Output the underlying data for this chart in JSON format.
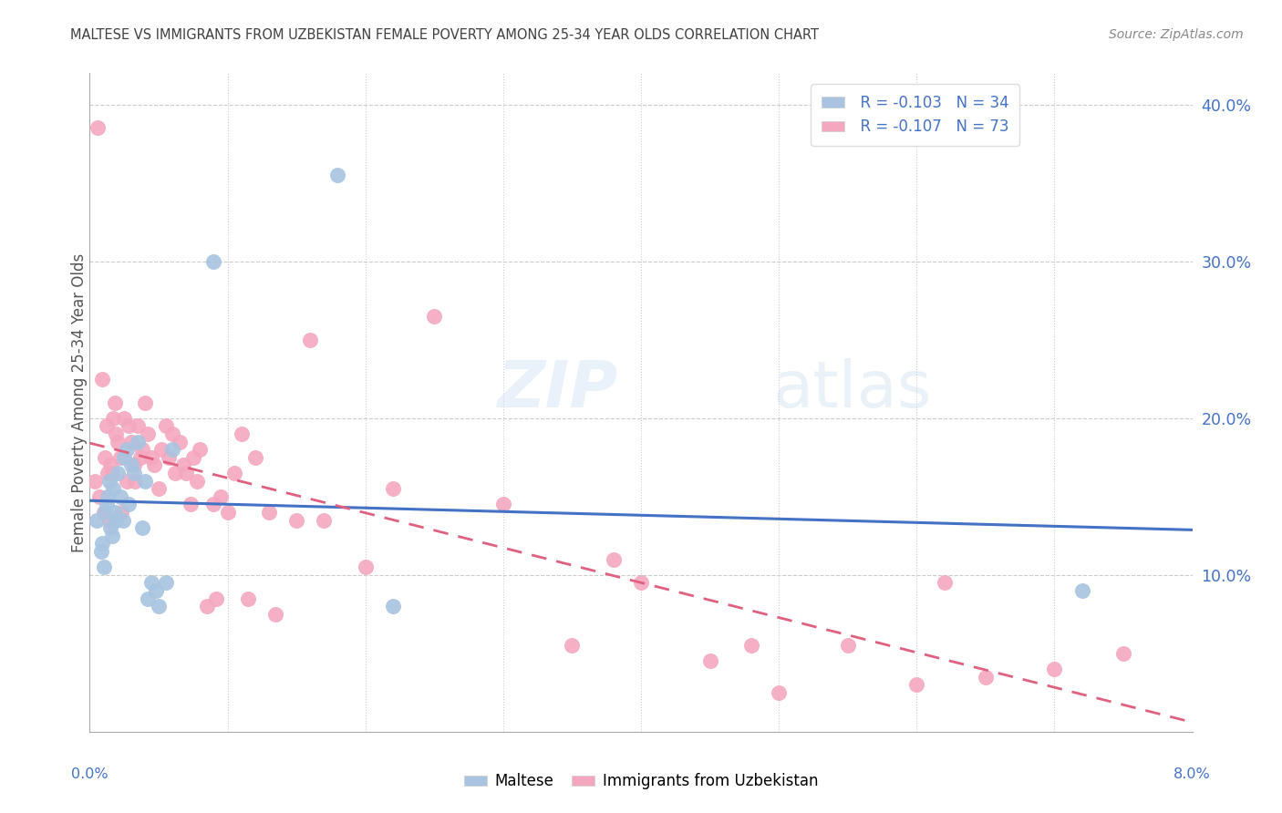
{
  "title": "MALTESE VS IMMIGRANTS FROM UZBEKISTAN FEMALE POVERTY AMONG 25-34 YEAR OLDS CORRELATION CHART",
  "source": "Source: ZipAtlas.com",
  "ylabel": "Female Poverty Among 25-34 Year Olds",
  "xlim": [
    0.0,
    8.0
  ],
  "ylim": [
    0.0,
    42.0
  ],
  "yticks_right": [
    10.0,
    20.0,
    30.0,
    40.0
  ],
  "ytick_labels_right": [
    "10.0%",
    "20.0%",
    "30.0%",
    "40.0%"
  ],
  "xticks": [
    0.0,
    1.0,
    2.0,
    3.0,
    4.0,
    5.0,
    6.0,
    7.0,
    8.0
  ],
  "legend_r1": "R = -0.103",
  "legend_n1": "N = 34",
  "legend_r2": "R = -0.107",
  "legend_n2": "N = 73",
  "color_maltese": "#a8c4e0",
  "color_uzbekistan": "#f4a8c0",
  "color_line_maltese": "#4472c4",
  "color_line_uzbekistan": "#e06080",
  "color_title": "#404040",
  "color_source": "#888888",
  "color_axis_blue": "#4472c4",
  "background_color": "#ffffff",
  "watermark_zip": "ZIP",
  "watermark_atlas": "atlas",
  "maltese_x": [
    0.05,
    0.08,
    0.09,
    0.1,
    0.11,
    0.12,
    0.13,
    0.14,
    0.15,
    0.16,
    0.17,
    0.18,
    0.19,
    0.2,
    0.22,
    0.24,
    0.25,
    0.27,
    0.28,
    0.3,
    0.32,
    0.35,
    0.38,
    0.4,
    0.42,
    0.45,
    0.48,
    0.5,
    0.55,
    0.6,
    0.9,
    1.8,
    2.2,
    7.2
  ],
  "maltese_y": [
    13.5,
    11.5,
    12.0,
    10.5,
    14.0,
    14.5,
    15.0,
    16.0,
    13.0,
    12.5,
    15.5,
    14.0,
    13.5,
    16.5,
    15.0,
    13.5,
    17.5,
    18.0,
    14.5,
    17.0,
    16.5,
    18.5,
    13.0,
    16.0,
    8.5,
    9.5,
    9.0,
    8.0,
    9.5,
    18.0,
    30.0,
    35.5,
    8.0,
    9.0
  ],
  "uzbek_x": [
    0.04,
    0.06,
    0.07,
    0.09,
    0.1,
    0.11,
    0.12,
    0.13,
    0.14,
    0.15,
    0.16,
    0.17,
    0.18,
    0.19,
    0.2,
    0.22,
    0.23,
    0.25,
    0.27,
    0.28,
    0.3,
    0.32,
    0.33,
    0.35,
    0.37,
    0.38,
    0.4,
    0.42,
    0.45,
    0.47,
    0.5,
    0.52,
    0.55,
    0.57,
    0.6,
    0.62,
    0.65,
    0.68,
    0.7,
    0.73,
    0.75,
    0.78,
    0.8,
    0.85,
    0.9,
    0.92,
    0.95,
    1.0,
    1.05,
    1.1,
    1.15,
    1.2,
    1.3,
    1.35,
    1.5,
    1.6,
    1.7,
    2.0,
    2.2,
    2.5,
    3.0,
    3.5,
    3.8,
    4.0,
    4.5,
    4.8,
    5.0,
    5.5,
    6.0,
    6.2,
    6.5,
    7.0,
    7.5
  ],
  "uzbek_y": [
    16.0,
    38.5,
    15.0,
    22.5,
    14.0,
    17.5,
    19.5,
    16.5,
    13.5,
    17.0,
    16.5,
    20.0,
    21.0,
    19.0,
    18.5,
    17.5,
    14.0,
    20.0,
    16.0,
    19.5,
    18.5,
    17.0,
    16.0,
    19.5,
    17.5,
    18.0,
    21.0,
    19.0,
    17.5,
    17.0,
    15.5,
    18.0,
    19.5,
    17.5,
    19.0,
    16.5,
    18.5,
    17.0,
    16.5,
    14.5,
    17.5,
    16.0,
    18.0,
    8.0,
    14.5,
    8.5,
    15.0,
    14.0,
    16.5,
    19.0,
    8.5,
    17.5,
    14.0,
    7.5,
    13.5,
    25.0,
    13.5,
    10.5,
    15.5,
    26.5,
    14.5,
    5.5,
    11.0,
    9.5,
    4.5,
    5.5,
    2.5,
    5.5,
    3.0,
    9.5,
    3.5,
    4.0,
    5.0
  ]
}
